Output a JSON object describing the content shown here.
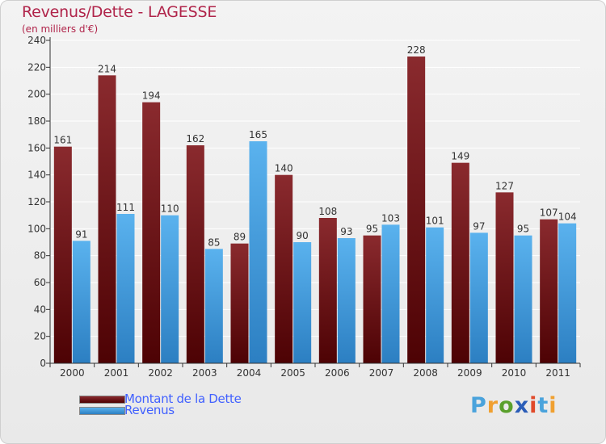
{
  "title": "Revenus/Dette - LAGESSE",
  "subtitle": "(en milliers d'€)",
  "legend": [
    {
      "label": "Montant de la Dette",
      "color": "#6b0a0f"
    },
    {
      "label": "Revenus",
      "color": "#3f9fe2"
    }
  ],
  "logo": {
    "text": "Proxiti",
    "colors": [
      "#4aa3dc",
      "#f0a030",
      "#5aa02c",
      "#2b5db8",
      "#e04a2a",
      "#4aa3dc",
      "#f0a030"
    ]
  },
  "chart_data": {
    "type": "bar",
    "categories": [
      "2000",
      "2001",
      "2002",
      "2003",
      "2004",
      "2005",
      "2006",
      "2007",
      "2008",
      "2009",
      "2010",
      "2011"
    ],
    "series": [
      {
        "name": "Montant de la Dette",
        "color": "#7a1c20",
        "values": [
          161,
          214,
          194,
          162,
          89,
          140,
          108,
          95,
          228,
          149,
          127,
          107
        ]
      },
      {
        "name": "Revenus",
        "color": "#4aa8e8",
        "values": [
          91,
          111,
          110,
          85,
          165,
          90,
          93,
          103,
          101,
          97,
          95,
          104
        ]
      }
    ],
    "ylim": [
      0,
      240
    ],
    "yticks": [
      0,
      20,
      40,
      60,
      80,
      100,
      120,
      140,
      160,
      180,
      200,
      220,
      240
    ],
    "grid": true
  }
}
